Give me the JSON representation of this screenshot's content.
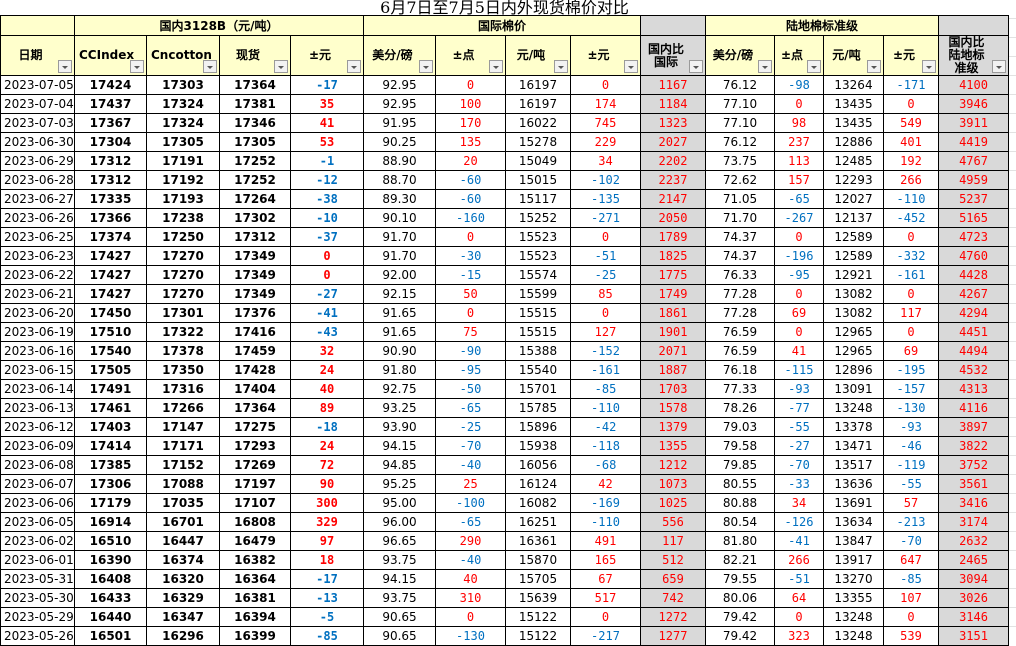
{
  "title": "6月7日至7月5日内外现货棉价对比",
  "groups": {
    "domestic": "国内3128B（元/吨）",
    "international": "国际棉价",
    "upland": "陆地棉标准级"
  },
  "headers": [
    "日期",
    "CCIndex",
    "Cncotton",
    "现货",
    "±元",
    "美分/磅",
    "±点",
    "元/吨",
    "±元",
    "国内比国际",
    "美分/磅",
    "±点",
    "元/吨",
    "±元",
    "国内比陆地标准级"
  ],
  "colors": {
    "header_bg": "#ffffcc",
    "gray_col": "#d9d9d9",
    "positive": "#ff0000",
    "negative": "#0070c0"
  },
  "rows": [
    [
      "2023-07-05",
      "17424",
      "17303",
      "17364",
      "-17",
      "92.95",
      "0",
      "16197",
      "0",
      "1167",
      "76.12",
      "-98",
      "13264",
      "-171",
      "4100"
    ],
    [
      "2023-07-04",
      "17437",
      "17324",
      "17381",
      "35",
      "92.95",
      "100",
      "16197",
      "174",
      "1184",
      "77.10",
      "0",
      "13435",
      "0",
      "3946"
    ],
    [
      "2023-07-03",
      "17367",
      "17324",
      "17346",
      "41",
      "91.95",
      "170",
      "16022",
      "745",
      "1323",
      "77.10",
      "98",
      "13435",
      "549",
      "3911"
    ],
    [
      "2023-06-30",
      "17304",
      "17305",
      "17305",
      "53",
      "90.25",
      "135",
      "15278",
      "229",
      "2027",
      "76.12",
      "237",
      "12886",
      "401",
      "4419"
    ],
    [
      "2023-06-29",
      "17312",
      "17191",
      "17252",
      "-1",
      "88.90",
      "20",
      "15049",
      "34",
      "2202",
      "73.75",
      "113",
      "12485",
      "192",
      "4767"
    ],
    [
      "2023-06-28",
      "17312",
      "17192",
      "17252",
      "-12",
      "88.70",
      "-60",
      "15015",
      "-102",
      "2237",
      "72.62",
      "157",
      "12293",
      "266",
      "4959"
    ],
    [
      "2023-06-27",
      "17335",
      "17193",
      "17264",
      "-38",
      "89.30",
      "-60",
      "15117",
      "-135",
      "2147",
      "71.05",
      "-65",
      "12027",
      "-110",
      "5237"
    ],
    [
      "2023-06-26",
      "17366",
      "17238",
      "17302",
      "-10",
      "90.10",
      "-160",
      "15252",
      "-271",
      "2050",
      "71.70",
      "-267",
      "12137",
      "-452",
      "5165"
    ],
    [
      "2023-06-25",
      "17374",
      "17250",
      "17312",
      "-37",
      "91.70",
      "0",
      "15523",
      "0",
      "1789",
      "74.37",
      "0",
      "12589",
      "0",
      "4723"
    ],
    [
      "2023-06-23",
      "17427",
      "17270",
      "17349",
      "0",
      "91.70",
      "-30",
      "15523",
      "-51",
      "1825",
      "74.37",
      "-196",
      "12589",
      "-332",
      "4760"
    ],
    [
      "2023-06-22",
      "17427",
      "17270",
      "17349",
      "0",
      "92.00",
      "-15",
      "15574",
      "-25",
      "1775",
      "76.33",
      "-95",
      "12921",
      "-161",
      "4428"
    ],
    [
      "2023-06-21",
      "17427",
      "17270",
      "17349",
      "-27",
      "92.15",
      "50",
      "15599",
      "85",
      "1749",
      "77.28",
      "0",
      "13082",
      "0",
      "4267"
    ],
    [
      "2023-06-20",
      "17450",
      "17301",
      "17376",
      "-41",
      "91.65",
      "0",
      "15515",
      "0",
      "1861",
      "77.28",
      "69",
      "13082",
      "117",
      "4294"
    ],
    [
      "2023-06-19",
      "17510",
      "17322",
      "17416",
      "-43",
      "91.65",
      "75",
      "15515",
      "127",
      "1901",
      "76.59",
      "0",
      "12965",
      "0",
      "4451"
    ],
    [
      "2023-06-16",
      "17540",
      "17378",
      "17459",
      "32",
      "90.90",
      "-90",
      "15388",
      "-152",
      "2071",
      "76.59",
      "41",
      "12965",
      "69",
      "4494"
    ],
    [
      "2023-06-15",
      "17505",
      "17350",
      "17428",
      "24",
      "91.80",
      "-95",
      "15540",
      "-161",
      "1887",
      "76.18",
      "-115",
      "12896",
      "-195",
      "4532"
    ],
    [
      "2023-06-14",
      "17491",
      "17316",
      "17404",
      "40",
      "92.75",
      "-50",
      "15701",
      "-85",
      "1703",
      "77.33",
      "-93",
      "13091",
      "-157",
      "4313"
    ],
    [
      "2023-06-13",
      "17461",
      "17266",
      "17364",
      "89",
      "93.25",
      "-65",
      "15785",
      "-110",
      "1578",
      "78.26",
      "-77",
      "13248",
      "-130",
      "4116"
    ],
    [
      "2023-06-12",
      "17403",
      "17147",
      "17275",
      "-18",
      "93.90",
      "-25",
      "15896",
      "-42",
      "1379",
      "79.03",
      "-55",
      "13378",
      "-93",
      "3897"
    ],
    [
      "2023-06-09",
      "17414",
      "17171",
      "17293",
      "24",
      "94.15",
      "-70",
      "15938",
      "-118",
      "1355",
      "79.58",
      "-27",
      "13471",
      "-46",
      "3822"
    ],
    [
      "2023-06-08",
      "17385",
      "17152",
      "17269",
      "72",
      "94.85",
      "-40",
      "16056",
      "-68",
      "1212",
      "79.85",
      "-70",
      "13517",
      "-119",
      "3752"
    ],
    [
      "2023-06-07",
      "17306",
      "17088",
      "17197",
      "90",
      "95.25",
      "25",
      "16124",
      "42",
      "1073",
      "80.55",
      "-33",
      "13636",
      "-55",
      "3561"
    ],
    [
      "2023-06-06",
      "17179",
      "17035",
      "17107",
      "300",
      "95.00",
      "-100",
      "16082",
      "-169",
      "1025",
      "80.88",
      "34",
      "13691",
      "57",
      "3416"
    ],
    [
      "2023-06-05",
      "16914",
      "16701",
      "16808",
      "329",
      "96.00",
      "-65",
      "16251",
      "-110",
      "556",
      "80.54",
      "-126",
      "13634",
      "-213",
      "3174"
    ],
    [
      "2023-06-02",
      "16510",
      "16447",
      "16479",
      "97",
      "96.65",
      "290",
      "16361",
      "491",
      "117",
      "81.80",
      "-41",
      "13847",
      "-70",
      "2632"
    ],
    [
      "2023-06-01",
      "16390",
      "16374",
      "16382",
      "18",
      "93.75",
      "-40",
      "15870",
      "165",
      "512",
      "82.21",
      "266",
      "13917",
      "647",
      "2465"
    ],
    [
      "2023-05-31",
      "16408",
      "16320",
      "16364",
      "-17",
      "94.15",
      "40",
      "15705",
      "67",
      "659",
      "79.55",
      "-51",
      "13270",
      "-85",
      "3094"
    ],
    [
      "2023-05-30",
      "16433",
      "16329",
      "16381",
      "-13",
      "93.75",
      "310",
      "15639",
      "517",
      "742",
      "80.06",
      "64",
      "13355",
      "107",
      "3026"
    ],
    [
      "2023-05-29",
      "16440",
      "16347",
      "16394",
      "-5",
      "90.65",
      "0",
      "15122",
      "0",
      "1272",
      "79.42",
      "0",
      "13248",
      "0",
      "3146"
    ],
    [
      "2023-05-26",
      "16501",
      "16296",
      "16399",
      "-85",
      "90.65",
      "-130",
      "15122",
      "-217",
      "1277",
      "79.42",
      "323",
      "13248",
      "539",
      "3151"
    ]
  ]
}
